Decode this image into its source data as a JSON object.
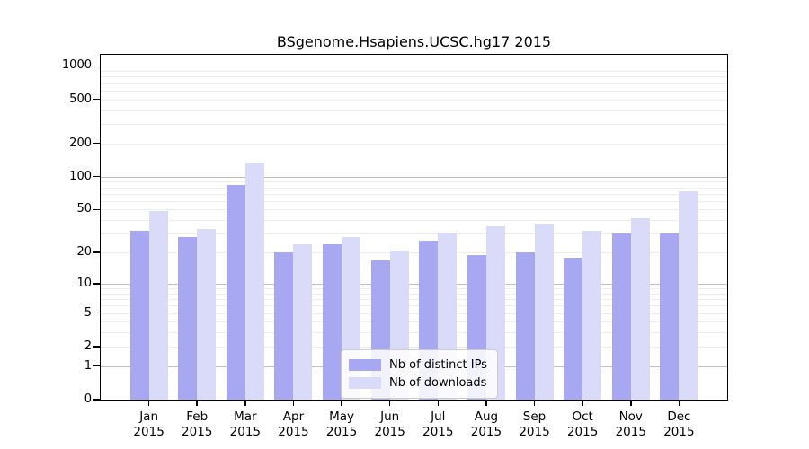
{
  "chart_data": {
    "type": "bar",
    "title": "BSgenome.Hsapiens.UCSC.hg17 2015",
    "categories": [
      "Jan 2015",
      "Feb 2015",
      "Mar 2015",
      "Apr 2015",
      "May 2015",
      "Jun 2015",
      "Jul 2015",
      "Aug 2015",
      "Sep 2015",
      "Oct 2015",
      "Nov 2015",
      "Dec 2015"
    ],
    "x_months": [
      "Jan",
      "Feb",
      "Mar",
      "Apr",
      "May",
      "Jun",
      "Jul",
      "Aug",
      "Sep",
      "Oct",
      "Nov",
      "Dec"
    ],
    "x_year": "2015",
    "series": [
      {
        "name": "Nb of distinct IPs",
        "color": "#a7a7f2",
        "values": [
          32,
          28,
          84,
          20,
          24,
          17,
          26,
          19,
          20,
          18,
          30,
          30
        ]
      },
      {
        "name": "Nb of downloads",
        "color": "#dadaf9",
        "values": [
          49,
          33,
          134,
          24,
          28,
          21,
          31,
          35,
          37,
          32,
          42,
          74
        ]
      }
    ],
    "y_axis": {
      "scale": "log10(1+x)",
      "tick_values": [
        0,
        1,
        2,
        5,
        10,
        20,
        50,
        100,
        200,
        500,
        1000
      ],
      "tick_labels": [
        "0",
        "1",
        "2",
        "5",
        "10",
        "20",
        "50",
        "100",
        "200",
        "500",
        "1000"
      ],
      "max_log": 3.1,
      "major_grid_values": [
        1,
        10,
        100,
        1000
      ]
    },
    "grid": true,
    "legend": {
      "position": "bottom-center",
      "items": [
        {
          "label": "Nb of distinct IPs",
          "color": "#a7a7f2"
        },
        {
          "label": "Nb of downloads",
          "color": "#dadaf9"
        }
      ]
    },
    "colors": {
      "background": "#ffffff",
      "axis": "#000000",
      "major_grid": "#c0c0c0",
      "minor_grid": "#ededed"
    }
  }
}
